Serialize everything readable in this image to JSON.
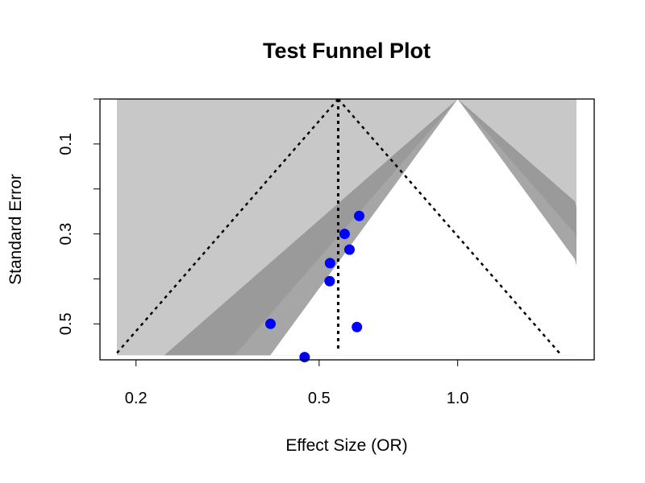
{
  "chart_data": {
    "type": "scatter",
    "title": "Test Funnel Plot",
    "xlabel": "Effect Size (OR)",
    "ylabel": "Standard Error",
    "x_scale": "log",
    "y_reversed": true,
    "xlim": [
      0.167,
      1.98
    ],
    "ylim": [
      0.58,
      0.0
    ],
    "x_ticks": [
      {
        "value": 0.2,
        "label": "0.2"
      },
      {
        "value": 0.5,
        "label": "0.5"
      },
      {
        "value": 1.0,
        "label": "1.0"
      }
    ],
    "y_ticks": [
      {
        "value": 0.1,
        "label": "0.1"
      },
      {
        "value": 0.3,
        "label": "0.3"
      },
      {
        "value": 0.5,
        "label": "0.5"
      }
    ],
    "contour_null": 1.0,
    "contour_z": [
      1.645,
      1.96,
      2.576
    ],
    "contour_colors": [
      "#ffffff",
      "#a6a6a6",
      "#9a9a9a",
      "#c8c8c8"
    ],
    "pooled_estimate": 0.55,
    "funnel_se_max": 0.57,
    "point_color": "#0000ff",
    "points": [
      {
        "x": 0.611,
        "y": 0.26
      },
      {
        "x": 0.568,
        "y": 0.3
      },
      {
        "x": 0.582,
        "y": 0.335
      },
      {
        "x": 0.528,
        "y": 0.365
      },
      {
        "x": 0.527,
        "y": 0.405
      },
      {
        "x": 0.392,
        "y": 0.5
      },
      {
        "x": 0.604,
        "y": 0.507
      },
      {
        "x": 0.465,
        "y": 0.574
      }
    ]
  }
}
